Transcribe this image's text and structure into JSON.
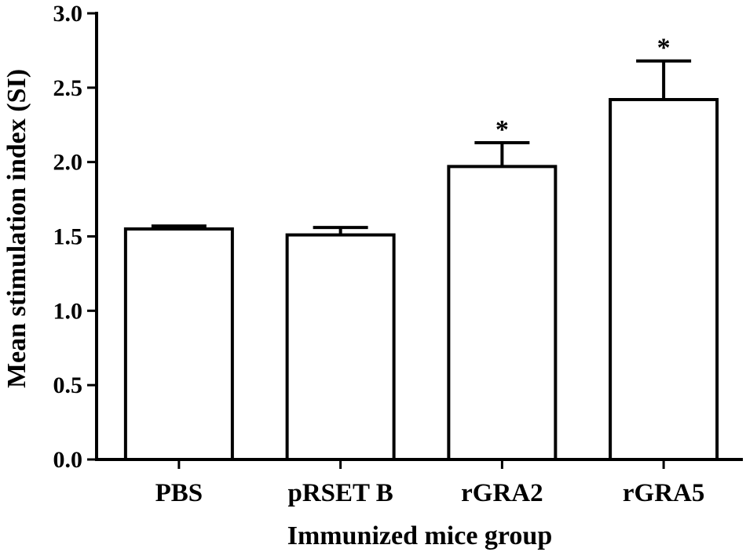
{
  "chart_data": {
    "type": "bar",
    "title": "",
    "xlabel": "Immunized mice group",
    "ylabel": "Mean stimulation index (SI)",
    "categories": [
      "PBS",
      "pRSET B",
      "rGRA2",
      "rGRA5"
    ],
    "values": [
      1.55,
      1.51,
      1.97,
      2.42
    ],
    "errors": [
      0.02,
      0.05,
      0.16,
      0.26
    ],
    "annotations": [
      "",
      "",
      "*",
      "*"
    ],
    "ylim": [
      0,
      3.0
    ],
    "yticks": [
      "0.0",
      "0.5",
      "1.0",
      "1.5",
      "2.0",
      "2.5",
      "3.0"
    ],
    "grid": false,
    "legend": "none"
  },
  "colors": {
    "bar_fill": "#ffffff",
    "bar_stroke": "#000000"
  }
}
